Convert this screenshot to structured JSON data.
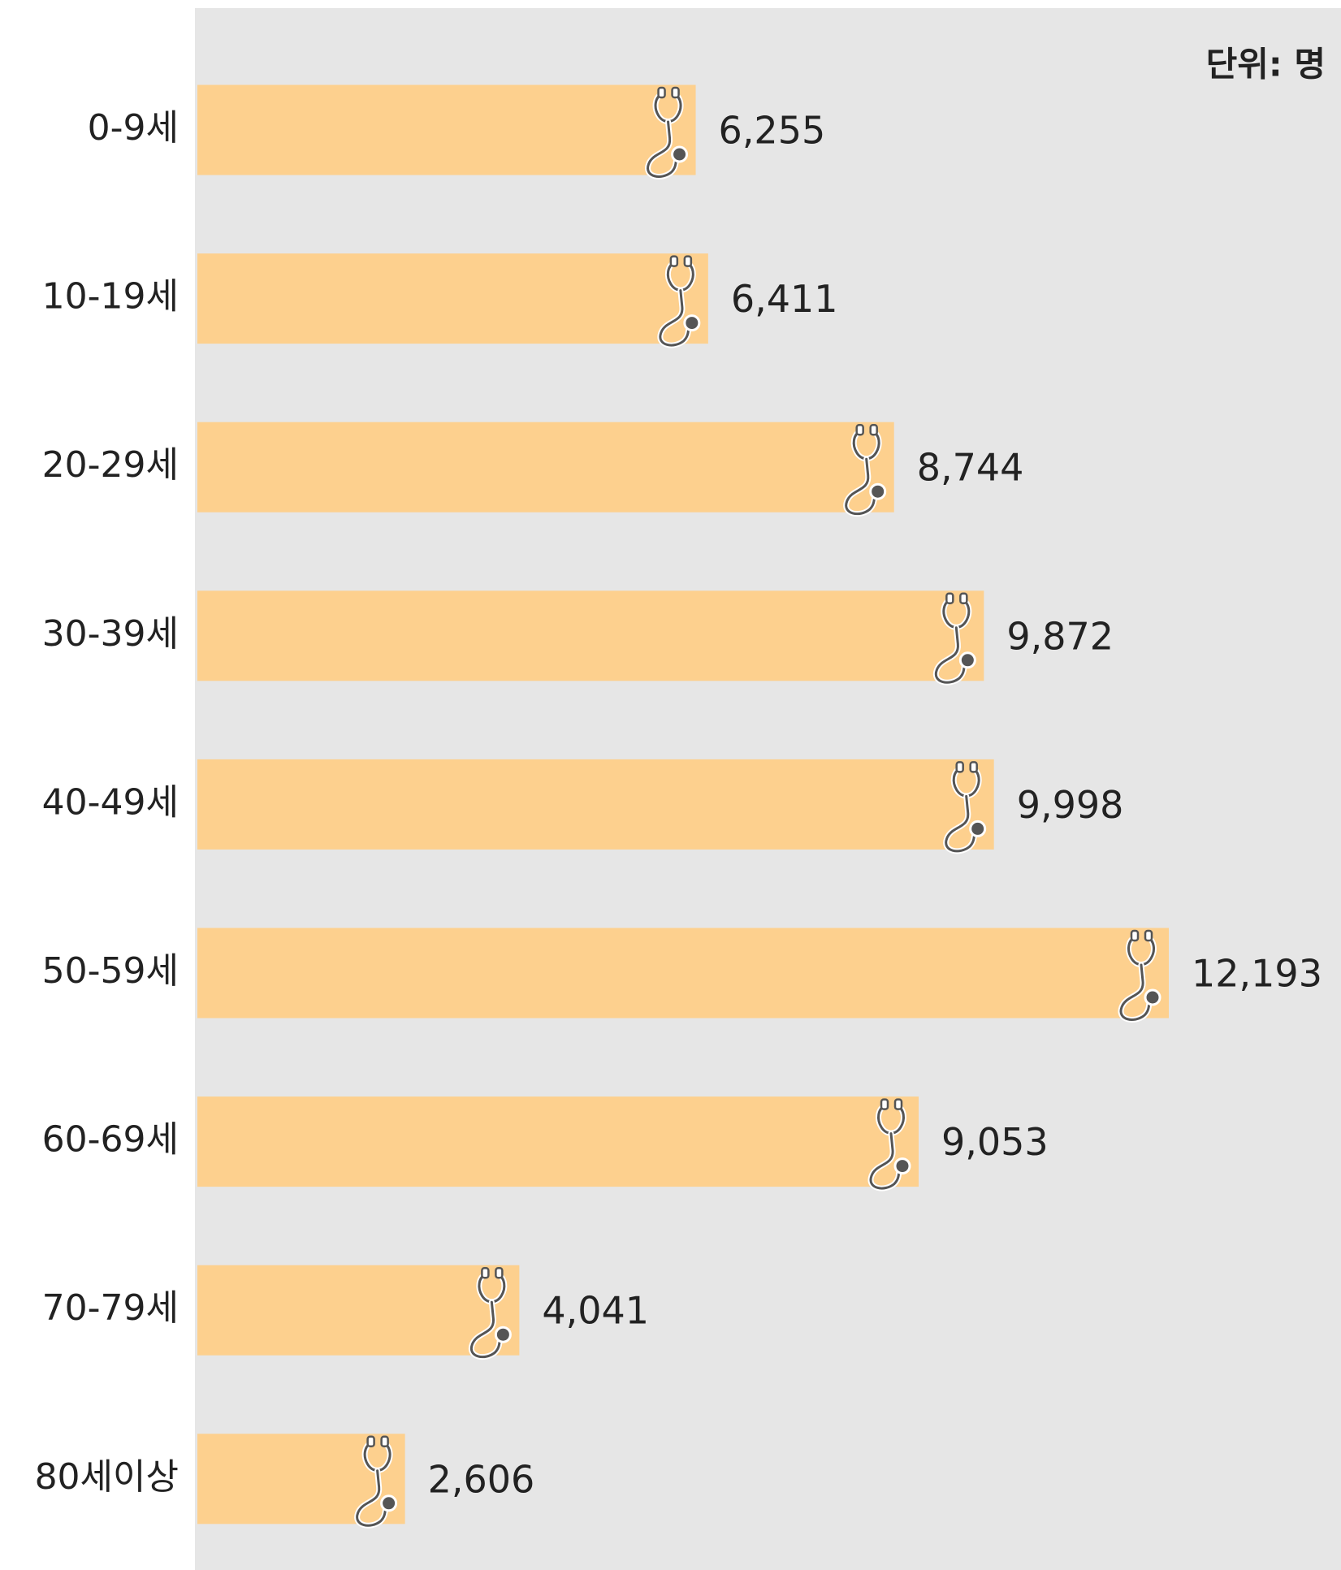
{
  "chart_data": {
    "type": "bar",
    "orientation": "horizontal",
    "unit_label": "단위: 명",
    "categories": [
      "0-9세",
      "10-19세",
      "20-29세",
      "30-39세",
      "40-49세",
      "50-59세",
      "60-69세",
      "70-79세",
      "80세이상"
    ],
    "values": [
      6255,
      6411,
      8744,
      9872,
      9998,
      12193,
      9053,
      4041,
      2606
    ],
    "value_labels": [
      "6,255",
      "6,411",
      "8,744",
      "9,872",
      "9,998",
      "12,193",
      "9,053",
      "4,041",
      "2,606"
    ],
    "color": "#fdd08e"
  }
}
